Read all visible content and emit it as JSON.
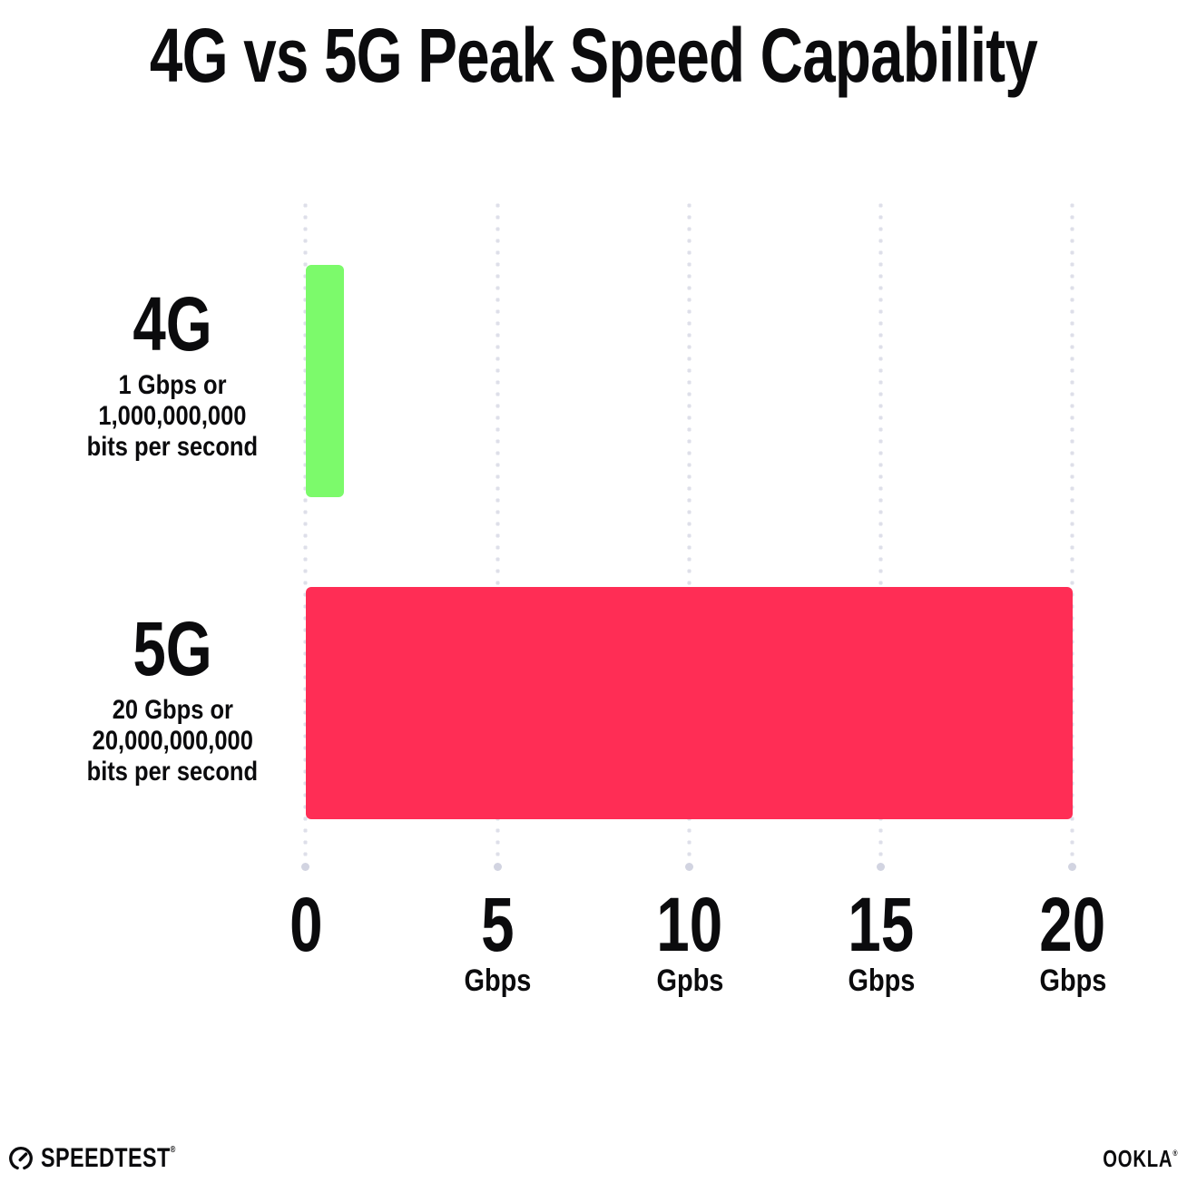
{
  "title": "4G vs 5G Peak Speed Capability",
  "chart_data": {
    "type": "bar",
    "orientation": "horizontal",
    "title": "4G vs 5G Peak Speed Capability",
    "categories": [
      "4G",
      "5G"
    ],
    "values": [
      1,
      20
    ],
    "value_unit": "Gbps",
    "series_colors": [
      "#7cfa6b",
      "#ff2d55"
    ],
    "xlim": [
      0,
      20
    ],
    "x_ticks": [
      {
        "label": "0",
        "unit": ""
      },
      {
        "label": "5",
        "unit": "Gbps"
      },
      {
        "label": "10",
        "unit": "Gpbs"
      },
      {
        "label": "15",
        "unit": "Gbps"
      },
      {
        "label": "20",
        "unit": "Gbps"
      }
    ],
    "grid": "vertical-dotted",
    "legend": "none"
  },
  "rows": [
    {
      "label": "4G",
      "desc": [
        "1 Gbps or",
        "1,000,000,000",
        "bits per second"
      ]
    },
    {
      "label": "5G",
      "desc": [
        "20 Gbps or",
        "20,000,000,000",
        "bits per second"
      ]
    }
  ],
  "footer": {
    "speedtest": {
      "text": "SPEEDTEST",
      "tm": "®",
      "icon": "speedometer-gauge-icon"
    },
    "ookla": {
      "text": "OOKLA",
      "tm": "®"
    }
  },
  "colors": {
    "background": "#ffffff",
    "text": "#0b0b0d",
    "gridline_dot": "#dedfe9",
    "gridline_end_dot": "#d2d4e1"
  }
}
